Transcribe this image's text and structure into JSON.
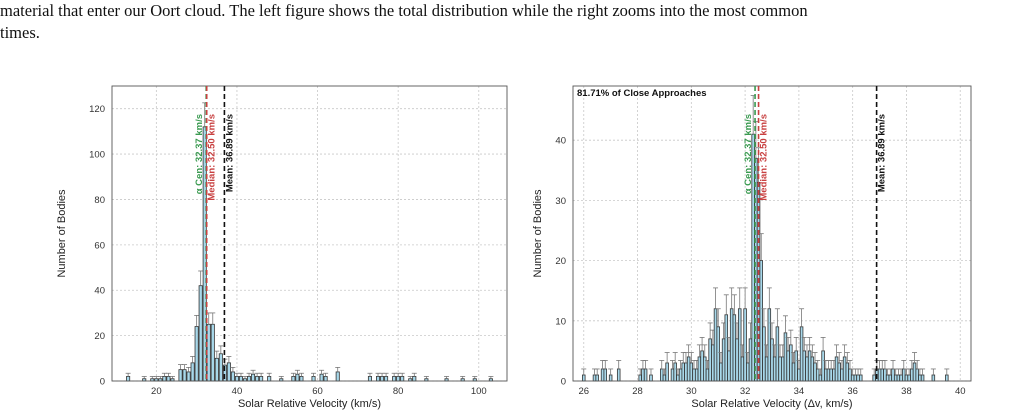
{
  "caption": {
    "line1": "material that enter our Oort cloud. The left figure shows the total distribution while the right zooms into the most common",
    "line2": "times."
  },
  "chart_data": [
    {
      "type": "bar",
      "xlabel": "Solar Relative Velocity (km/s)",
      "ylabel": "Number of Bodies",
      "xlim": [
        9,
        107
      ],
      "ylim": [
        0,
        130
      ],
      "xticks": [
        20,
        40,
        60,
        80,
        100
      ],
      "yticks": [
        0,
        20,
        40,
        60,
        80,
        100,
        120
      ],
      "grid": true,
      "bin_width": 0.8,
      "colors": {
        "bar": "#a8d8ea",
        "edge": "#333333",
        "alpha": "#3a9a50",
        "median": "#c84040",
        "mean": "#111111"
      },
      "lines": [
        {
          "name": "alpha",
          "label": "α Cen: 32.37 km/s",
          "x": 32.37
        },
        {
          "name": "median",
          "label": "Median: 32.50 km/s",
          "x": 32.5
        },
        {
          "name": "mean",
          "label": "Mean: 36.89 km/s",
          "x": 36.89
        }
      ],
      "x": [
        13,
        17,
        19,
        20,
        21,
        22,
        23,
        24,
        26,
        27,
        28,
        29,
        30,
        31,
        32,
        33,
        34,
        35,
        36,
        37,
        38,
        39,
        40,
        41,
        42,
        43,
        44,
        45,
        46,
        48,
        51,
        54,
        55,
        56,
        59,
        61,
        62,
        65,
        73,
        75,
        76,
        77,
        79,
        80,
        81,
        83,
        84,
        87,
        92,
        96,
        99,
        103
      ],
      "values": [
        2,
        1,
        1,
        1,
        1,
        2,
        2,
        1,
        5,
        5,
        4,
        8,
        24,
        42,
        112,
        25,
        25,
        10,
        12,
        7,
        8,
        4,
        2,
        2,
        1,
        2,
        3,
        2,
        2,
        2,
        1,
        2,
        3,
        2,
        2,
        3,
        2,
        4,
        2,
        2,
        2,
        2,
        2,
        2,
        2,
        1,
        2,
        1,
        1,
        1,
        1,
        1
      ]
    },
    {
      "type": "bar",
      "xlabel": "Solar Relative Velocity (Δv, km/s)",
      "ylabel": "Number of Bodies",
      "xlim": [
        25.6,
        40.4
      ],
      "ylim": [
        0,
        49
      ],
      "xticks": [
        26,
        28,
        30,
        32,
        34,
        36,
        38,
        40
      ],
      "yticks": [
        0,
        10,
        20,
        30,
        40
      ],
      "grid": true,
      "bin_width": 0.1,
      "annotation": "81.71% of Close Approaches",
      "colors": {
        "bar": "#a8d8ea",
        "edge": "#333333",
        "alpha": "#3a9a50",
        "median": "#c84040",
        "mean": "#111111"
      },
      "lines": [
        {
          "name": "alpha",
          "label": "α Cen: 32.37 km/s",
          "x": 32.37
        },
        {
          "name": "median",
          "label": "Median: 32.50 km/s",
          "x": 32.5
        },
        {
          "name": "mean",
          "label": "Mean: 36.89 km/s",
          "x": 36.89
        }
      ],
      "x": [
        26.0,
        26.4,
        26.5,
        26.7,
        26.8,
        27.0,
        27.3,
        28.1,
        28.2,
        28.3,
        28.5,
        28.9,
        29.0,
        29.1,
        29.3,
        29.4,
        29.5,
        29.6,
        29.7,
        29.8,
        29.9,
        30.0,
        30.1,
        30.2,
        30.3,
        30.4,
        30.5,
        30.6,
        30.7,
        30.8,
        30.9,
        31.0,
        31.1,
        31.2,
        31.3,
        31.4,
        31.5,
        31.6,
        31.7,
        31.8,
        31.9,
        32.0,
        32.1,
        32.2,
        32.3,
        32.4,
        32.5,
        32.6,
        32.7,
        32.8,
        32.9,
        33.0,
        33.1,
        33.2,
        33.3,
        33.4,
        33.5,
        33.6,
        33.7,
        33.8,
        33.9,
        34.0,
        34.1,
        34.2,
        34.3,
        34.4,
        34.5,
        34.6,
        34.7,
        34.8,
        34.9,
        35.0,
        35.1,
        35.2,
        35.3,
        35.4,
        35.5,
        35.6,
        35.7,
        35.8,
        35.9,
        36.0,
        36.1,
        36.2,
        36.3,
        36.8,
        36.9,
        37.0,
        37.1,
        37.2,
        37.3,
        37.4,
        37.5,
        37.6,
        37.7,
        37.8,
        37.9,
        38.0,
        38.1,
        38.2,
        38.3,
        38.4,
        38.5,
        38.6,
        39.0,
        39.5
      ],
      "values": [
        1,
        1,
        1,
        2,
        2,
        1,
        2,
        1,
        2,
        2,
        1,
        2,
        1,
        3,
        2,
        3,
        1,
        2,
        3,
        3,
        4,
        3,
        2,
        2,
        4,
        5,
        4,
        2,
        7,
        6,
        12,
        9,
        3,
        7,
        11,
        5,
        12,
        11,
        7,
        12,
        4,
        12,
        3,
        7,
        41,
        37,
        33,
        20,
        9,
        4,
        12,
        7,
        4,
        9,
        4,
        4,
        8,
        5,
        6,
        3,
        5,
        2,
        9,
        5,
        4,
        5,
        4,
        3,
        2,
        1,
        5,
        2,
        2,
        2,
        2,
        4,
        3,
        2,
        4,
        3,
        2,
        1,
        1,
        1,
        1,
        1,
        2,
        2,
        2,
        2,
        1,
        1,
        2,
        1,
        1,
        1,
        2,
        1,
        1,
        2,
        3,
        2,
        1,
        1,
        1,
        1
      ]
    }
  ]
}
